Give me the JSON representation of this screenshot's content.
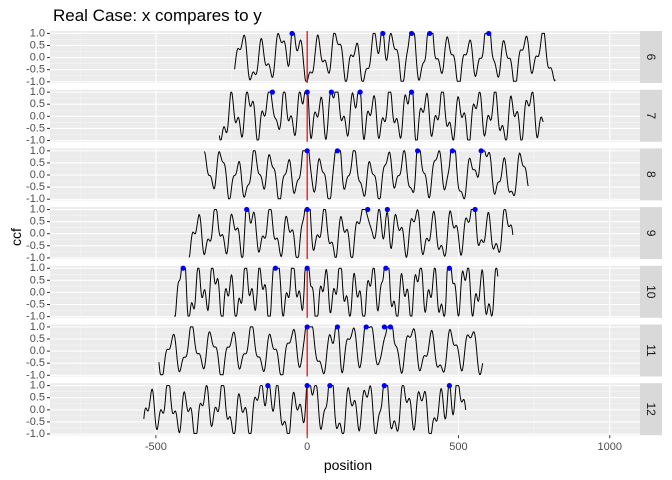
{
  "chart_data": {
    "type": "line",
    "title": "Real Case: x compares to y",
    "xlabel": "position",
    "ylabel": "ccf",
    "xlim": [
      -850,
      1100
    ],
    "ylim": [
      -1.05,
      1.1
    ],
    "x_ticks": [
      -500,
      0,
      500,
      1000
    ],
    "x_tick_labels": [
      "-500",
      "0",
      "500",
      "1000"
    ],
    "y_ticks": [
      -1.0,
      -0.5,
      0.0,
      0.5,
      1.0
    ],
    "y_tick_labels": [
      "-1.0",
      "-0.5",
      "0.0",
      "0.5",
      "1.0"
    ],
    "reference_line": {
      "x": 0,
      "color": "#dd0000"
    },
    "line_color": "#000000",
    "point_color": "#0000ff",
    "panel_background": "#ebebeb",
    "strip_background": "#d9d9d9",
    "grid": true,
    "facets": [
      {
        "label": "6",
        "x_range": [
          -240,
          820
        ],
        "period": 62,
        "peaks": [
          -50,
          250,
          345,
          405,
          600
        ]
      },
      {
        "label": "7",
        "x_range": [
          -290,
          780
        ],
        "period": 58,
        "peaks": [
          -115,
          0,
          80,
          175,
          345
        ]
      },
      {
        "label": "8",
        "x_range": [
          -340,
          730
        ],
        "period": 55,
        "peaks": [
          0,
          100,
          365,
          480,
          575
        ]
      },
      {
        "label": "9",
        "x_range": [
          -390,
          680
        ],
        "period": 60,
        "peaks": [
          -200,
          0,
          200,
          265,
          555
        ]
      },
      {
        "label": "10",
        "x_range": [
          -440,
          630
        ],
        "period": 52,
        "peaks": [
          -410,
          -105,
          0,
          260,
          470
        ]
      },
      {
        "label": "11",
        "x_range": [
          -490,
          580
        ],
        "period": 66,
        "peaks": [
          0,
          100,
          195,
          255,
          275
        ]
      },
      {
        "label": "12",
        "x_range": [
          -540,
          525
        ],
        "period": 60,
        "peaks": [
          -130,
          0,
          75,
          255,
          470
        ]
      }
    ]
  }
}
